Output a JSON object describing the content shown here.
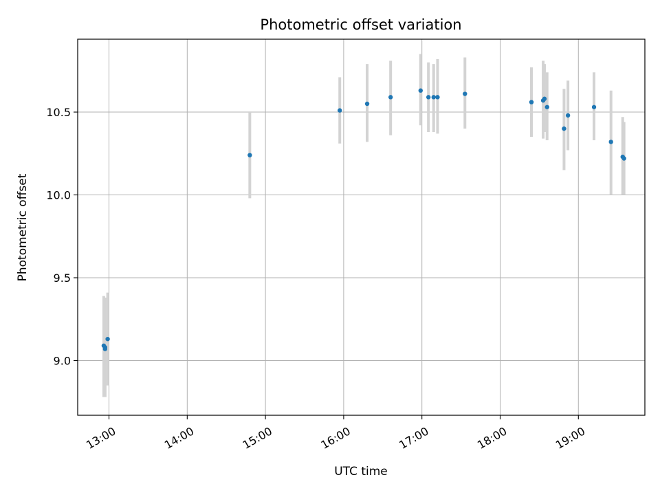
{
  "chart_data": {
    "type": "scatter",
    "title": "Photometric offset variation",
    "xlabel": "UTC time",
    "ylabel": "Photometric offset",
    "x_tick_labels": [
      "13:00",
      "14:00",
      "15:00",
      "16:00",
      "17:00",
      "18:00",
      "19:00"
    ],
    "x_tick_values": [
      "13:00",
      "14:00",
      "15:00",
      "16:00",
      "17:00",
      "18:00",
      "19:00"
    ],
    "y_tick_labels": [
      "9.0",
      "9.5",
      "10.0",
      "10.5"
    ],
    "y_tick_values": [
      9.0,
      9.5,
      10.0,
      10.5
    ],
    "xlim": [
      "12:36",
      "19:51"
    ],
    "ylim": [
      8.67,
      10.94
    ],
    "grid": true,
    "series": [
      {
        "marker_color": "#1f77b4",
        "errorbar_color": "#d3d3d3",
        "points": [
          {
            "x": "12:56",
            "y": 9.09,
            "yerr_low": 8.78,
            "yerr_high": 9.39
          },
          {
            "x": "12:57",
            "y": 9.08,
            "yerr_low": 8.78,
            "yerr_high": 9.38
          },
          {
            "x": "12:57",
            "y": 9.07,
            "yerr_low": 8.78,
            "yerr_high": 9.37
          },
          {
            "x": "12:59",
            "y": 9.13,
            "yerr_low": 8.85,
            "yerr_high": 9.41
          },
          {
            "x": "14:48",
            "y": 10.24,
            "yerr_low": 9.98,
            "yerr_high": 10.5
          },
          {
            "x": "15:57",
            "y": 10.51,
            "yerr_low": 10.31,
            "yerr_high": 10.71
          },
          {
            "x": "16:18",
            "y": 10.55,
            "yerr_low": 10.32,
            "yerr_high": 10.79
          },
          {
            "x": "16:36",
            "y": 10.59,
            "yerr_low": 10.36,
            "yerr_high": 10.81
          },
          {
            "x": "16:59",
            "y": 10.63,
            "yerr_low": 10.42,
            "yerr_high": 10.85
          },
          {
            "x": "17:05",
            "y": 10.59,
            "yerr_low": 10.38,
            "yerr_high": 10.8
          },
          {
            "x": "17:09",
            "y": 10.59,
            "yerr_low": 10.38,
            "yerr_high": 10.79
          },
          {
            "x": "17:12",
            "y": 10.59,
            "yerr_low": 10.37,
            "yerr_high": 10.82
          },
          {
            "x": "17:33",
            "y": 10.61,
            "yerr_low": 10.4,
            "yerr_high": 10.83
          },
          {
            "x": "18:24",
            "y": 10.56,
            "yerr_low": 10.35,
            "yerr_high": 10.77
          },
          {
            "x": "18:33",
            "y": 10.57,
            "yerr_low": 10.34,
            "yerr_high": 10.81
          },
          {
            "x": "18:34",
            "y": 10.58,
            "yerr_low": 10.38,
            "yerr_high": 10.79
          },
          {
            "x": "18:36",
            "y": 10.53,
            "yerr_low": 10.33,
            "yerr_high": 10.74
          },
          {
            "x": "18:49",
            "y": 10.4,
            "yerr_low": 10.15,
            "yerr_high": 10.64
          },
          {
            "x": "18:52",
            "y": 10.48,
            "yerr_low": 10.27,
            "yerr_high": 10.69
          },
          {
            "x": "19:12",
            "y": 10.53,
            "yerr_low": 10.33,
            "yerr_high": 10.74
          },
          {
            "x": "19:25",
            "y": 10.32,
            "yerr_low": 10.0,
            "yerr_high": 10.63
          },
          {
            "x": "19:34",
            "y": 10.23,
            "yerr_low": 10.0,
            "yerr_high": 10.47
          },
          {
            "x": "19:35",
            "y": 10.22,
            "yerr_low": 10.0,
            "yerr_high": 10.44
          }
        ]
      }
    ]
  }
}
